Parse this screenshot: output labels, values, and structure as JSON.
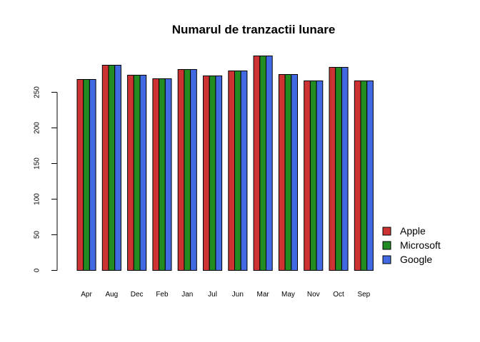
{
  "chart_data": {
    "type": "bar",
    "title": "Numarul de tranzactii lunare",
    "xlabel": "",
    "ylabel": "",
    "categories": [
      "Apr",
      "Aug",
      "Dec",
      "Feb",
      "Jan",
      "Jul",
      "Jun",
      "Mar",
      "May",
      "Nov",
      "Oct",
      "Sep"
    ],
    "series": [
      {
        "name": "Apple",
        "color": "#cd3333",
        "values": [
          268,
          288,
          274,
          269,
          282,
          273,
          280,
          301,
          275,
          266,
          285,
          266
        ]
      },
      {
        "name": "Microsoft",
        "color": "#228b22",
        "values": [
          268,
          288,
          274,
          269,
          282,
          273,
          280,
          301,
          275,
          266,
          285,
          266
        ]
      },
      {
        "name": "Google",
        "color": "#4169e1",
        "values": [
          268,
          288,
          274,
          269,
          282,
          273,
          280,
          301,
          275,
          266,
          285,
          266
        ]
      }
    ],
    "ylim": [
      0,
      300
    ],
    "yticks": [
      0,
      50,
      100,
      150,
      200,
      250
    ],
    "grid": false,
    "legend_position": "bottom-right"
  }
}
